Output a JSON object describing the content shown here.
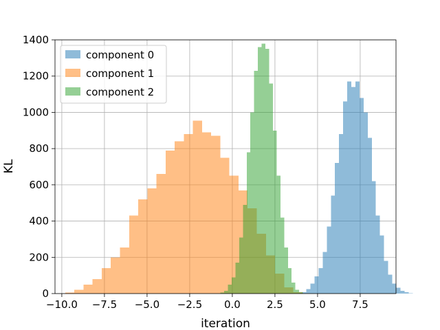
{
  "chart_data": {
    "type": "bar",
    "title": "",
    "xlabel": "iteration",
    "ylabel": "KL",
    "xlim": [
      -10.4,
      9.6
    ],
    "ylim": [
      0,
      1400
    ],
    "xticks": [
      -10.0,
      -7.5,
      -5.0,
      -2.5,
      0.0,
      2.5,
      5.0,
      7.5
    ],
    "xtick_labels": [
      "−10.0",
      "−7.5",
      "−5.0",
      "−2.5",
      "0.0",
      "2.5",
      "5.0",
      "7.5"
    ],
    "yticks": [
      0,
      200,
      400,
      600,
      800,
      1000,
      1200,
      1400
    ],
    "ytick_labels": [
      "0",
      "200",
      "400",
      "600",
      "800",
      "1000",
      "1200",
      "1400"
    ],
    "grid": true,
    "legend_position": "upper-left",
    "alpha": 0.5,
    "series": [
      {
        "name": "component 0",
        "color": "#1f77b4",
        "bin_start": 4.1,
        "bin_width": 0.24,
        "counts": [
          7,
          25,
          55,
          95,
          140,
          230,
          370,
          540,
          720,
          880,
          1060,
          1170,
          1140,
          1170,
          1080,
          1000,
          860,
          620,
          430,
          320,
          180,
          105,
          55,
          32,
          15,
          7,
          2
        ]
      },
      {
        "name": "component 1",
        "color": "#ff7f0e",
        "bin_start": -9.8,
        "bin_width": 0.535,
        "counts": [
          5,
          20,
          50,
          80,
          140,
          200,
          255,
          430,
          520,
          580,
          660,
          790,
          840,
          880,
          955,
          890,
          870,
          750,
          650,
          570,
          470,
          330,
          210,
          110,
          35,
          8
        ]
      },
      {
        "name": "component 2",
        "color": "#2ca02c",
        "bin_start": -0.7,
        "bin_width": 0.22,
        "counts": [
          5,
          15,
          50,
          90,
          170,
          310,
          490,
          780,
          1000,
          1230,
          1360,
          1380,
          1350,
          1160,
          900,
          650,
          420,
          255,
          140,
          60,
          20,
          8
        ]
      }
    ]
  }
}
